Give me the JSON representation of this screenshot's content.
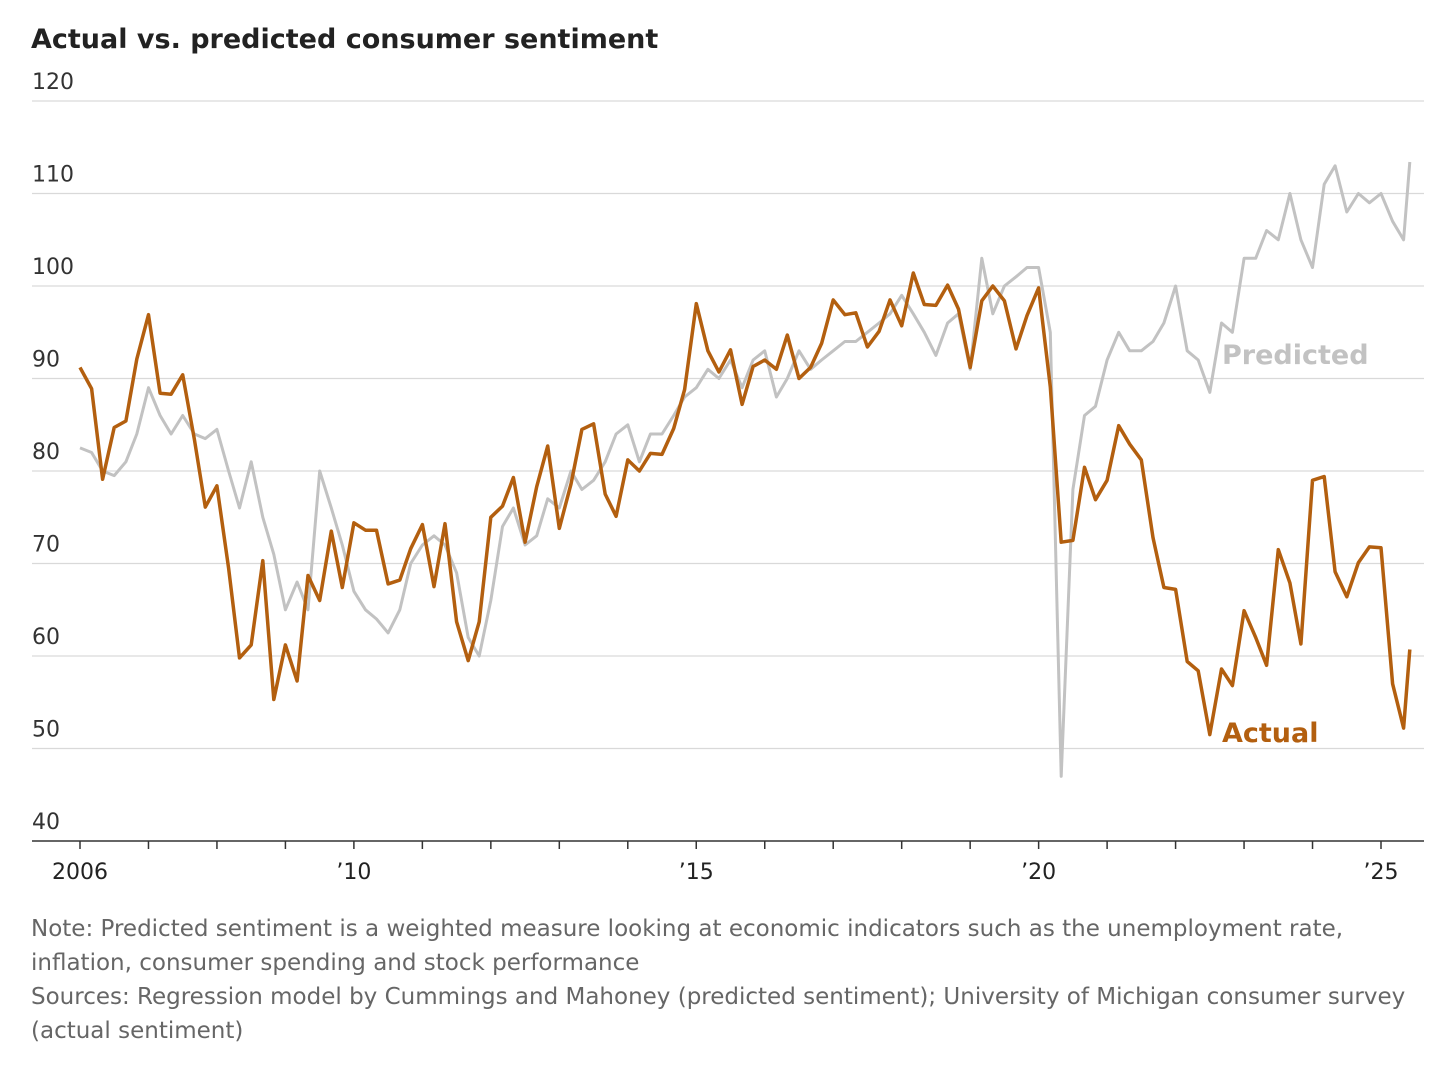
{
  "chart_data": {
    "type": "line",
    "title": "Actual vs. predicted consumer sentiment",
    "x": [
      2006,
      2006.17,
      2006.33,
      2006.5,
      2006.67,
      2006.83,
      2007,
      2007.17,
      2007.33,
      2007.5,
      2007.67,
      2007.83,
      2008,
      2008.17,
      2008.33,
      2008.5,
      2008.67,
      2008.83,
      2009,
      2009.17,
      2009.33,
      2009.5,
      2009.67,
      2009.83,
      2010,
      2010.17,
      2010.33,
      2010.5,
      2010.67,
      2010.83,
      2011,
      2011.17,
      2011.33,
      2011.5,
      2011.67,
      2011.83,
      2012,
      2012.17,
      2012.33,
      2012.5,
      2012.67,
      2012.83,
      2013,
      2013.17,
      2013.33,
      2013.5,
      2013.67,
      2013.83,
      2014,
      2014.17,
      2014.33,
      2014.5,
      2014.67,
      2014.83,
      2015,
      2015.17,
      2015.33,
      2015.5,
      2015.67,
      2015.83,
      2016,
      2016.17,
      2016.33,
      2016.5,
      2016.67,
      2016.83,
      2017,
      2017.17,
      2017.33,
      2017.5,
      2017.67,
      2017.83,
      2018,
      2018.17,
      2018.33,
      2018.5,
      2018.67,
      2018.83,
      2019,
      2019.17,
      2019.33,
      2019.5,
      2019.67,
      2019.83,
      2020,
      2020.17,
      2020.33,
      2020.5,
      2020.67,
      2020.83,
      2021,
      2021.17,
      2021.33,
      2021.5,
      2021.67,
      2021.83,
      2022,
      2022.17,
      2022.33,
      2022.5,
      2022.67,
      2022.83,
      2023,
      2023.17,
      2023.33,
      2023.5,
      2023.67,
      2023.83,
      2024,
      2024.17,
      2024.33,
      2024.5,
      2024.67,
      2024.83,
      2025,
      2025.17,
      2025.33,
      2025.42
    ],
    "series": [
      {
        "name": "Predicted",
        "color": "#c2c2c2",
        "values": [
          82.5,
          82,
          80,
          79.5,
          81,
          84,
          89,
          86,
          84,
          86,
          84,
          83.5,
          84.5,
          80,
          76,
          81,
          75,
          71,
          65,
          68,
          65,
          80,
          76,
          72,
          67,
          65,
          64,
          62.5,
          65,
          70,
          72,
          73,
          72,
          69,
          62,
          60,
          66,
          74,
          76,
          72,
          73,
          77,
          76,
          80,
          78,
          79,
          81,
          84,
          85,
          81,
          84,
          84,
          86,
          88,
          89,
          91,
          90,
          92,
          89,
          92,
          93,
          88,
          90,
          93,
          91,
          92,
          93,
          94,
          94,
          95,
          96,
          97,
          99,
          97,
          95,
          92.5,
          96,
          97,
          91,
          103,
          97,
          100,
          101,
          102,
          102,
          95,
          47,
          78,
          86,
          87,
          92,
          95,
          93,
          93,
          94,
          96,
          100,
          93,
          92,
          88.5,
          96,
          95,
          103,
          103,
          106,
          105,
          110,
          105,
          102,
          111,
          113,
          108,
          110,
          109,
          110,
          107,
          105,
          113.4
        ]
      },
      {
        "name": "Actual",
        "color": "#b35f0f",
        "values": [
          91.2,
          88.9,
          79.1,
          84.7,
          85.4,
          92.1,
          96.9,
          88.4,
          88.3,
          90.4,
          83.4,
          76.1,
          78.4,
          69.5,
          59.8,
          61.2,
          70.3,
          55.3,
          61.2,
          57.3,
          68.7,
          66,
          73.5,
          67.4,
          74.4,
          73.6,
          73.6,
          67.8,
          68.2,
          71.6,
          74.2,
          67.5,
          74.3,
          63.7,
          59.5,
          63.7,
          75,
          76.2,
          79.3,
          72.3,
          78.3,
          82.7,
          73.8,
          78.6,
          84.5,
          85.1,
          77.5,
          75.1,
          81.2,
          80,
          81.9,
          81.8,
          84.6,
          88.8,
          98.1,
          93,
          90.7,
          93.1,
          87.2,
          91.3,
          92,
          91,
          94.7,
          90,
          91.2,
          93.8,
          98.5,
          96.9,
          97.1,
          93.4,
          95.1,
          98.5,
          95.7,
          101.4,
          98,
          97.9,
          100.1,
          97.5,
          91.2,
          98.4,
          100,
          98.4,
          93.2,
          96.8,
          99.8,
          89.1,
          72.3,
          72.5,
          80.4,
          76.9,
          79,
          84.9,
          82.9,
          81.2,
          72.8,
          67.4,
          67.2,
          59.4,
          58.4,
          51.5,
          58.6,
          56.8,
          64.9,
          62,
          59,
          71.5,
          67.9,
          61.3,
          79,
          79.4,
          69.1,
          66.4,
          70.1,
          71.8,
          71.7,
          57,
          52.2,
          60.7
        ]
      }
    ],
    "xlim": [
      2005.9,
      2025.6
    ],
    "ylim": [
      40,
      120
    ],
    "yticks": [
      40,
      50,
      60,
      70,
      80,
      90,
      100,
      110,
      120
    ],
    "xticks": [
      2006,
      {
        "value": 2007,
        "label": null
      },
      {
        "value": 2008,
        "label": null
      },
      {
        "value": 2009,
        "label": null
      },
      {
        "value": 2010,
        "label": "’10"
      },
      {
        "value": 2011,
        "label": null
      },
      {
        "value": 2012,
        "label": null
      },
      {
        "value": 2013,
        "label": null
      },
      {
        "value": 2014,
        "label": null
      },
      {
        "value": 2015,
        "label": "’15"
      },
      {
        "value": 2016,
        "label": null
      },
      {
        "value": 2017,
        "label": null
      },
      {
        "value": 2018,
        "label": null
      },
      {
        "value": 2019,
        "label": null
      },
      {
        "value": 2020,
        "label": "’20"
      },
      {
        "value": 2021,
        "label": null
      },
      {
        "value": 2022,
        "label": null
      },
      {
        "value": 2023,
        "label": null
      },
      {
        "value": 2024,
        "label": null
      },
      {
        "value": 2025,
        "label": "’25"
      }
    ],
    "grid": true,
    "note": "Note: Predicted sentiment is a weighted measure looking at economic indicators such as the unemployment rate, inflation, consumer spending and stock performance",
    "sources": "Sources: Regression model by Cummings and Mahoney (predicted sentiment); University of Michigan consumer survey (actual sentiment)"
  }
}
